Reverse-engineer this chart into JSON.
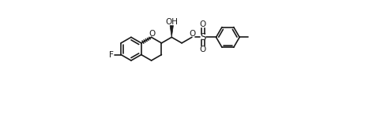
{
  "bg_color": "#ffffff",
  "line_color": "#1a1a1a",
  "line_width": 1.2,
  "font_size": 7.5,
  "fig_width": 4.62,
  "fig_height": 1.54,
  "dpi": 100,
  "xlim": [
    0,
    9.2
  ],
  "ylim": [
    -1.8,
    2.8
  ]
}
